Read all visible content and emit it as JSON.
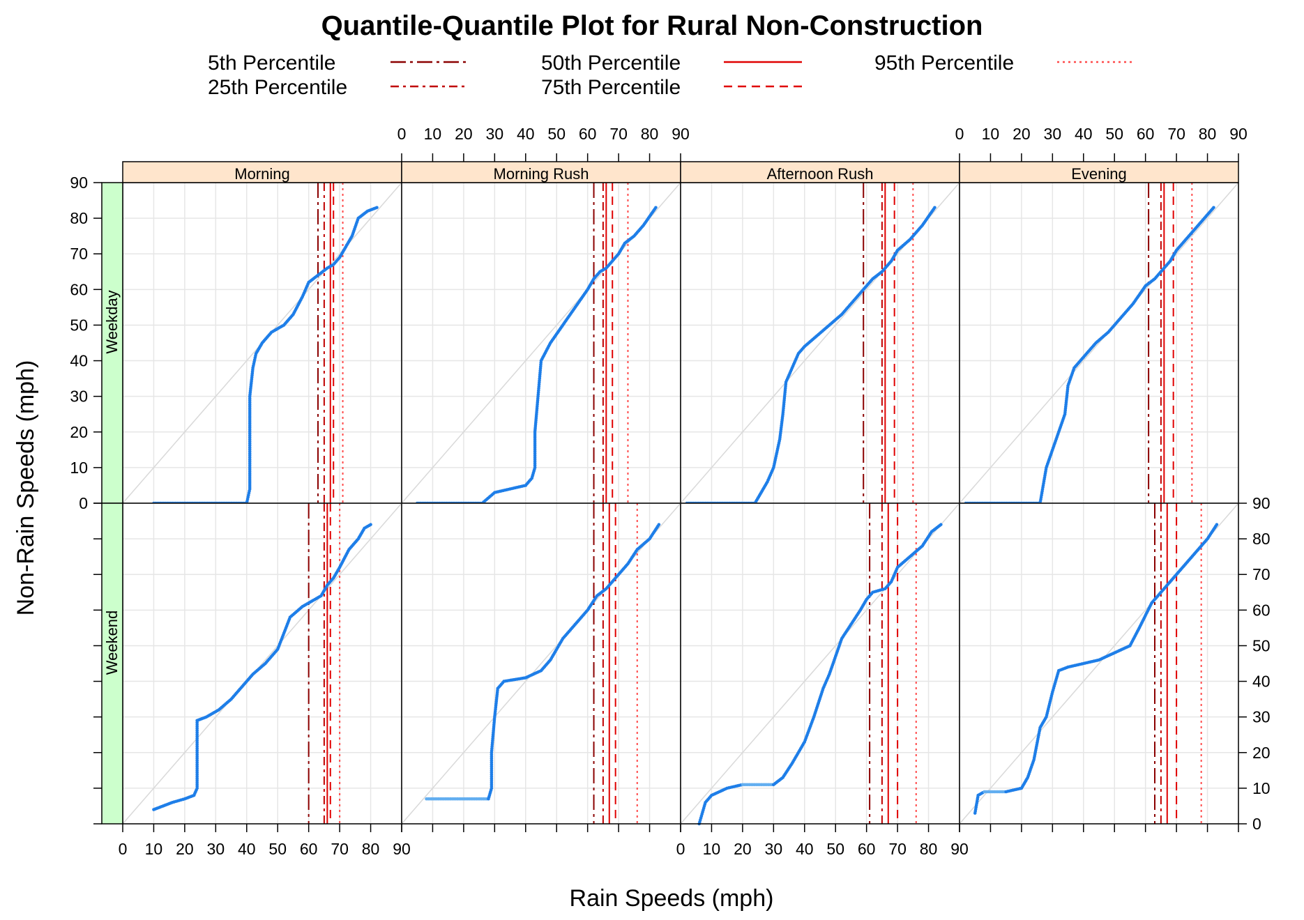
{
  "chart_data": {
    "type": "scatter",
    "title": "Quantile-Quantile Plot for Rural Non-Construction",
    "xlabel": "Rain Speeds (mph)",
    "ylabel": "Non-Rain Speeds (mph)",
    "xlim": [
      0,
      90
    ],
    "ylim": [
      0,
      90
    ],
    "ticks": [
      "0",
      "10",
      "20",
      "30",
      "40",
      "50",
      "60",
      "70",
      "80",
      "90"
    ],
    "grid": true,
    "legend_position": "top",
    "colors": {
      "points": "#1e7ee8",
      "points_light": "#62aef0",
      "reference_line": "#d9d9d9",
      "p5": "#8b0000",
      "p25": "#c00000",
      "p50": "#e00000",
      "p75": "#e00000",
      "p95": "#ff4a4a",
      "strip_top": "#ffe5cc",
      "strip_side": "#ccffcc",
      "grid": "#e6e6e6"
    },
    "legend": [
      {
        "label": "5th Percentile",
        "style": "dash-dot-long",
        "color": "#8b0000"
      },
      {
        "label": "25th Percentile",
        "style": "dash-dot",
        "color": "#c00000"
      },
      {
        "label": "50th Percentile",
        "style": "solid",
        "color": "#e00000"
      },
      {
        "label": "75th Percentile",
        "style": "dashed",
        "color": "#e00000"
      },
      {
        "label": "95th Percentile",
        "style": "dotted",
        "color": "#ff4a4a"
      }
    ],
    "columns": [
      "Morning",
      "Morning Rush",
      "Afternoon Rush",
      "Evening"
    ],
    "rows": [
      "Weekday",
      "Weekend"
    ],
    "panels": [
      {
        "column": "Morning",
        "row": "Weekday",
        "percentiles": {
          "p5": 63,
          "p25": 65,
          "p50": 67,
          "p75": 68,
          "p95": 71
        },
        "points": [
          [
            10,
            0
          ],
          [
            40,
            0
          ],
          [
            41,
            4
          ],
          [
            41,
            14
          ],
          [
            41,
            30
          ],
          [
            42,
            38
          ],
          [
            43,
            42
          ],
          [
            45,
            45
          ],
          [
            48,
            48
          ],
          [
            52,
            50
          ],
          [
            55,
            53
          ],
          [
            58,
            58
          ],
          [
            60,
            62
          ],
          [
            63,
            64
          ],
          [
            66,
            66
          ],
          [
            68,
            67
          ],
          [
            70,
            69
          ],
          [
            72,
            72
          ],
          [
            74,
            75
          ],
          [
            76,
            80
          ],
          [
            79,
            82
          ],
          [
            82,
            83
          ]
        ]
      },
      {
        "column": "Morning Rush",
        "row": "Weekday",
        "percentiles": {
          "p5": 62,
          "p25": 65,
          "p50": 66,
          "p75": 68,
          "p95": 73
        },
        "points": [
          [
            5,
            0
          ],
          [
            26,
            0
          ],
          [
            30,
            3
          ],
          [
            35,
            4
          ],
          [
            40,
            5
          ],
          [
            42,
            7
          ],
          [
            43,
            10
          ],
          [
            43,
            20
          ],
          [
            44,
            30
          ],
          [
            45,
            40
          ],
          [
            48,
            45
          ],
          [
            52,
            50
          ],
          [
            56,
            55
          ],
          [
            60,
            60
          ],
          [
            62,
            63
          ],
          [
            64,
            65
          ],
          [
            66,
            66
          ],
          [
            68,
            68
          ],
          [
            70,
            70
          ],
          [
            72,
            73
          ],
          [
            75,
            75
          ],
          [
            78,
            78
          ],
          [
            82,
            83
          ]
        ]
      },
      {
        "column": "Afternoon Rush",
        "row": "Weekday",
        "percentiles": {
          "p5": 59,
          "p25": 65,
          "p50": 66,
          "p75": 69,
          "p95": 75
        },
        "points": [
          [
            2,
            0
          ],
          [
            24,
            0
          ],
          [
            26,
            3
          ],
          [
            28,
            6
          ],
          [
            30,
            10
          ],
          [
            32,
            18
          ],
          [
            33,
            25
          ],
          [
            34,
            34
          ],
          [
            36,
            38
          ],
          [
            38,
            42
          ],
          [
            40,
            44
          ],
          [
            44,
            47
          ],
          [
            48,
            50
          ],
          [
            52,
            53
          ],
          [
            56,
            57
          ],
          [
            60,
            61
          ],
          [
            62,
            63
          ],
          [
            65,
            65
          ],
          [
            68,
            68
          ],
          [
            70,
            71
          ],
          [
            74,
            74
          ],
          [
            78,
            78
          ],
          [
            82,
            83
          ]
        ]
      },
      {
        "column": "Evening",
        "row": "Weekday",
        "percentiles": {
          "p5": 61,
          "p25": 65,
          "p50": 66,
          "p75": 69,
          "p95": 75
        },
        "points": [
          [
            2,
            0
          ],
          [
            26,
            0
          ],
          [
            27,
            5
          ],
          [
            28,
            10
          ],
          [
            30,
            15
          ],
          [
            32,
            20
          ],
          [
            34,
            25
          ],
          [
            35,
            33
          ],
          [
            37,
            38
          ],
          [
            40,
            41
          ],
          [
            44,
            45
          ],
          [
            48,
            48
          ],
          [
            52,
            52
          ],
          [
            56,
            56
          ],
          [
            60,
            61
          ],
          [
            63,
            63
          ],
          [
            66,
            66
          ],
          [
            68,
            68
          ],
          [
            70,
            71
          ],
          [
            73,
            74
          ],
          [
            76,
            77
          ],
          [
            79,
            80
          ],
          [
            82,
            83
          ]
        ]
      },
      {
        "column": "Morning",
        "row": "Weekend",
        "percentiles": {
          "p5": 60,
          "p25": 65,
          "p50": 66,
          "p75": 67,
          "p95": 70
        },
        "points": [
          [
            10,
            4
          ],
          [
            13,
            5
          ],
          [
            16,
            6
          ],
          [
            20,
            7
          ],
          [
            23,
            8
          ],
          [
            24,
            10
          ],
          [
            24,
            20
          ],
          [
            24,
            29
          ],
          [
            27,
            30
          ],
          [
            31,
            32
          ],
          [
            35,
            35
          ],
          [
            39,
            39
          ],
          [
            42,
            42
          ],
          [
            46,
            45
          ],
          [
            50,
            49
          ],
          [
            54,
            58
          ],
          [
            58,
            61
          ],
          [
            62,
            63
          ],
          [
            64,
            64
          ],
          [
            66,
            67
          ],
          [
            68,
            69
          ],
          [
            70,
            72
          ],
          [
            73,
            77
          ],
          [
            76,
            80
          ],
          [
            78,
            83
          ],
          [
            80,
            84
          ]
        ]
      },
      {
        "column": "Morning Rush",
        "row": "Weekend",
        "percentiles": {
          "p5": 62,
          "p25": 65,
          "p50": 67,
          "p75": 69,
          "p95": 76
        },
        "points": [
          [
            8,
            7
          ],
          [
            28,
            7
          ],
          [
            29,
            10
          ],
          [
            29,
            20
          ],
          [
            30,
            30
          ],
          [
            31,
            38
          ],
          [
            33,
            40
          ],
          [
            40,
            41
          ],
          [
            45,
            43
          ],
          [
            48,
            46
          ],
          [
            52,
            52
          ],
          [
            56,
            56
          ],
          [
            60,
            60
          ],
          [
            63,
            64
          ],
          [
            66,
            66
          ],
          [
            68,
            68
          ],
          [
            70,
            70
          ],
          [
            73,
            73
          ],
          [
            76,
            77
          ],
          [
            80,
            80
          ],
          [
            83,
            84
          ]
        ]
      },
      {
        "column": "Afternoon Rush",
        "row": "Weekend",
        "percentiles": {
          "p5": 61,
          "p25": 65,
          "p50": 67,
          "p75": 70,
          "p95": 76
        },
        "points": [
          [
            6,
            0
          ],
          [
            8,
            6
          ],
          [
            10,
            8
          ],
          [
            15,
            10
          ],
          [
            20,
            11
          ],
          [
            30,
            11
          ],
          [
            33,
            13
          ],
          [
            36,
            17
          ],
          [
            40,
            23
          ],
          [
            43,
            30
          ],
          [
            46,
            38
          ],
          [
            48,
            42
          ],
          [
            50,
            47
          ],
          [
            52,
            52
          ],
          [
            55,
            56
          ],
          [
            58,
            60
          ],
          [
            60,
            63
          ],
          [
            62,
            65
          ],
          [
            66,
            66
          ],
          [
            68,
            68
          ],
          [
            70,
            72
          ],
          [
            74,
            75
          ],
          [
            78,
            78
          ],
          [
            81,
            82
          ],
          [
            84,
            84
          ]
        ]
      },
      {
        "column": "Evening",
        "row": "Weekend",
        "percentiles": {
          "p5": 63,
          "p25": 65,
          "p50": 67,
          "p75": 70,
          "p95": 78
        },
        "points": [
          [
            5,
            3
          ],
          [
            6,
            8
          ],
          [
            8,
            9
          ],
          [
            15,
            9
          ],
          [
            20,
            10
          ],
          [
            22,
            13
          ],
          [
            24,
            18
          ],
          [
            26,
            27
          ],
          [
            28,
            30
          ],
          [
            30,
            37
          ],
          [
            32,
            43
          ],
          [
            35,
            44
          ],
          [
            40,
            45
          ],
          [
            45,
            46
          ],
          [
            50,
            48
          ],
          [
            55,
            50
          ],
          [
            58,
            55
          ],
          [
            62,
            62
          ],
          [
            65,
            65
          ],
          [
            68,
            68
          ],
          [
            71,
            71
          ],
          [
            74,
            74
          ],
          [
            77,
            77
          ],
          [
            80,
            80
          ],
          [
            83,
            84
          ]
        ]
      }
    ]
  }
}
